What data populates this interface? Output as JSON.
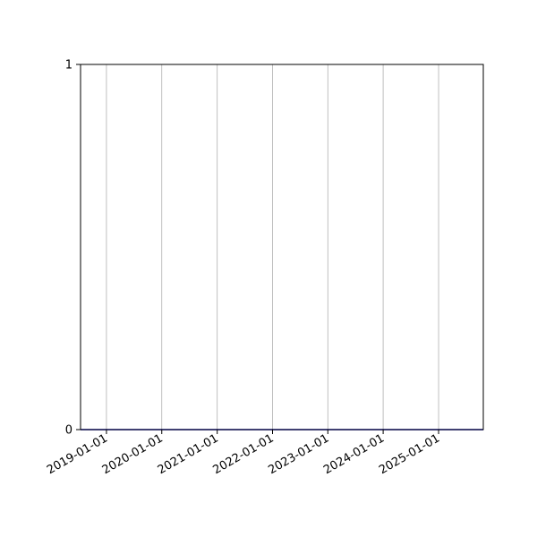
{
  "chart_data": {
    "type": "line",
    "title": "",
    "xlabel": "",
    "ylabel": "",
    "xlim": [
      "2018-07-14",
      "2025-10-23"
    ],
    "ylim": [
      0,
      1
    ],
    "x_ticks": [
      "2019-01-01",
      "2020-01-01",
      "2021-01-01",
      "2022-01-01",
      "2023-01-01",
      "2024-01-01",
      "2025-01-01"
    ],
    "y_ticks": [
      0,
      1
    ],
    "y_tick_labels": [
      "0",
      "1"
    ],
    "grid": "x-only",
    "series": [
      {
        "x": [
          "2018-07-14",
          "2025-10-23"
        ],
        "y": [
          0,
          0
        ],
        "color": "#0000cc"
      }
    ]
  }
}
